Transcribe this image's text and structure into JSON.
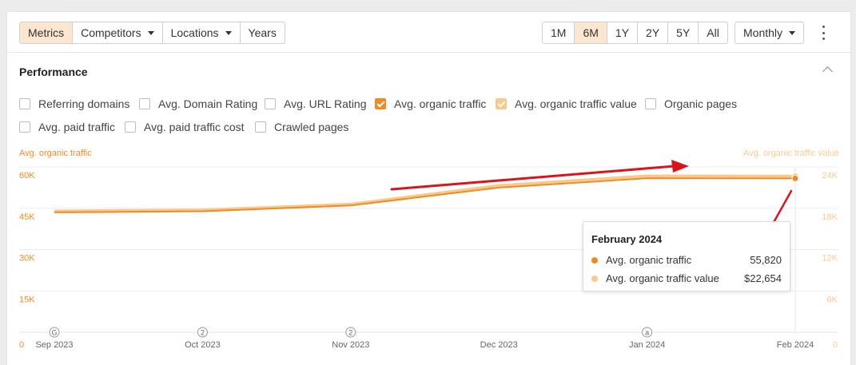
{
  "toolbar": {
    "tabs": [
      {
        "label": "Metrics",
        "active": true
      },
      {
        "label": "Competitors",
        "caret": true
      },
      {
        "label": "Locations",
        "caret": true
      },
      {
        "label": "Years"
      }
    ],
    "ranges": [
      "1M",
      "6M",
      "1Y",
      "2Y",
      "5Y",
      "All"
    ],
    "active_range": "6M",
    "interval": "Monthly"
  },
  "section": {
    "title": "Performance"
  },
  "metrics": [
    {
      "label": "Referring domains",
      "checked": false
    },
    {
      "label": "Avg. Domain Rating",
      "checked": false
    },
    {
      "label": "Avg. URL Rating",
      "checked": false
    },
    {
      "label": "Avg. organic traffic",
      "checked": true
    },
    {
      "label": "Avg. organic traffic value",
      "checked": true
    },
    {
      "label": "Organic pages",
      "checked": false
    },
    {
      "label": "Avg. paid traffic",
      "checked": false
    },
    {
      "label": "Avg. paid traffic cost",
      "checked": false
    },
    {
      "label": "Crawled pages",
      "checked": false
    }
  ],
  "colors": {
    "traffic": "#f08a24",
    "value": "#f9c98c",
    "accent_bg": "#fde6cf",
    "arrow": "#d9141b"
  },
  "chart_data": {
    "type": "line",
    "x": [
      "Sep 2023",
      "Oct 2023",
      "Nov 2023",
      "Dec 2023",
      "Jan 2024",
      "Feb 2024"
    ],
    "y_left_label": "Avg. organic traffic",
    "y_right_label": "Avg. organic traffic value",
    "y_left_ticks": [
      "0",
      "15K",
      "30K",
      "45K",
      "60K"
    ],
    "y_right_ticks": [
      "0",
      "6K",
      "12K",
      "18K",
      "24K"
    ],
    "y_left_range": [
      0,
      60000
    ],
    "y_right_range": [
      0,
      24000
    ],
    "grid": true,
    "series": [
      {
        "name": "Avg. organic traffic",
        "axis": "left",
        "color": "#f08a24",
        "values": [
          43500,
          43900,
          46000,
          52500,
          55900,
          55820
        ]
      },
      {
        "name": "Avg. organic traffic value",
        "axis": "right",
        "color": "#f9c98c",
        "values": [
          17600,
          17750,
          18600,
          21300,
          22700,
          22654
        ]
      }
    ],
    "markers": [
      {
        "date": "Sep 2023",
        "label": "G"
      },
      {
        "date": "Oct 2023",
        "label": "2"
      },
      {
        "date": "Nov 2023",
        "label": "2"
      },
      {
        "date": "Jan 2024",
        "label": "a"
      }
    ]
  },
  "tooltip": {
    "title": "February 2024",
    "rows": [
      {
        "name": "Avg. organic traffic",
        "value": "55,820",
        "color": "#f08a24"
      },
      {
        "name": "Avg. organic traffic value",
        "value": "$22,654",
        "color": "#f9c98c"
      }
    ]
  }
}
